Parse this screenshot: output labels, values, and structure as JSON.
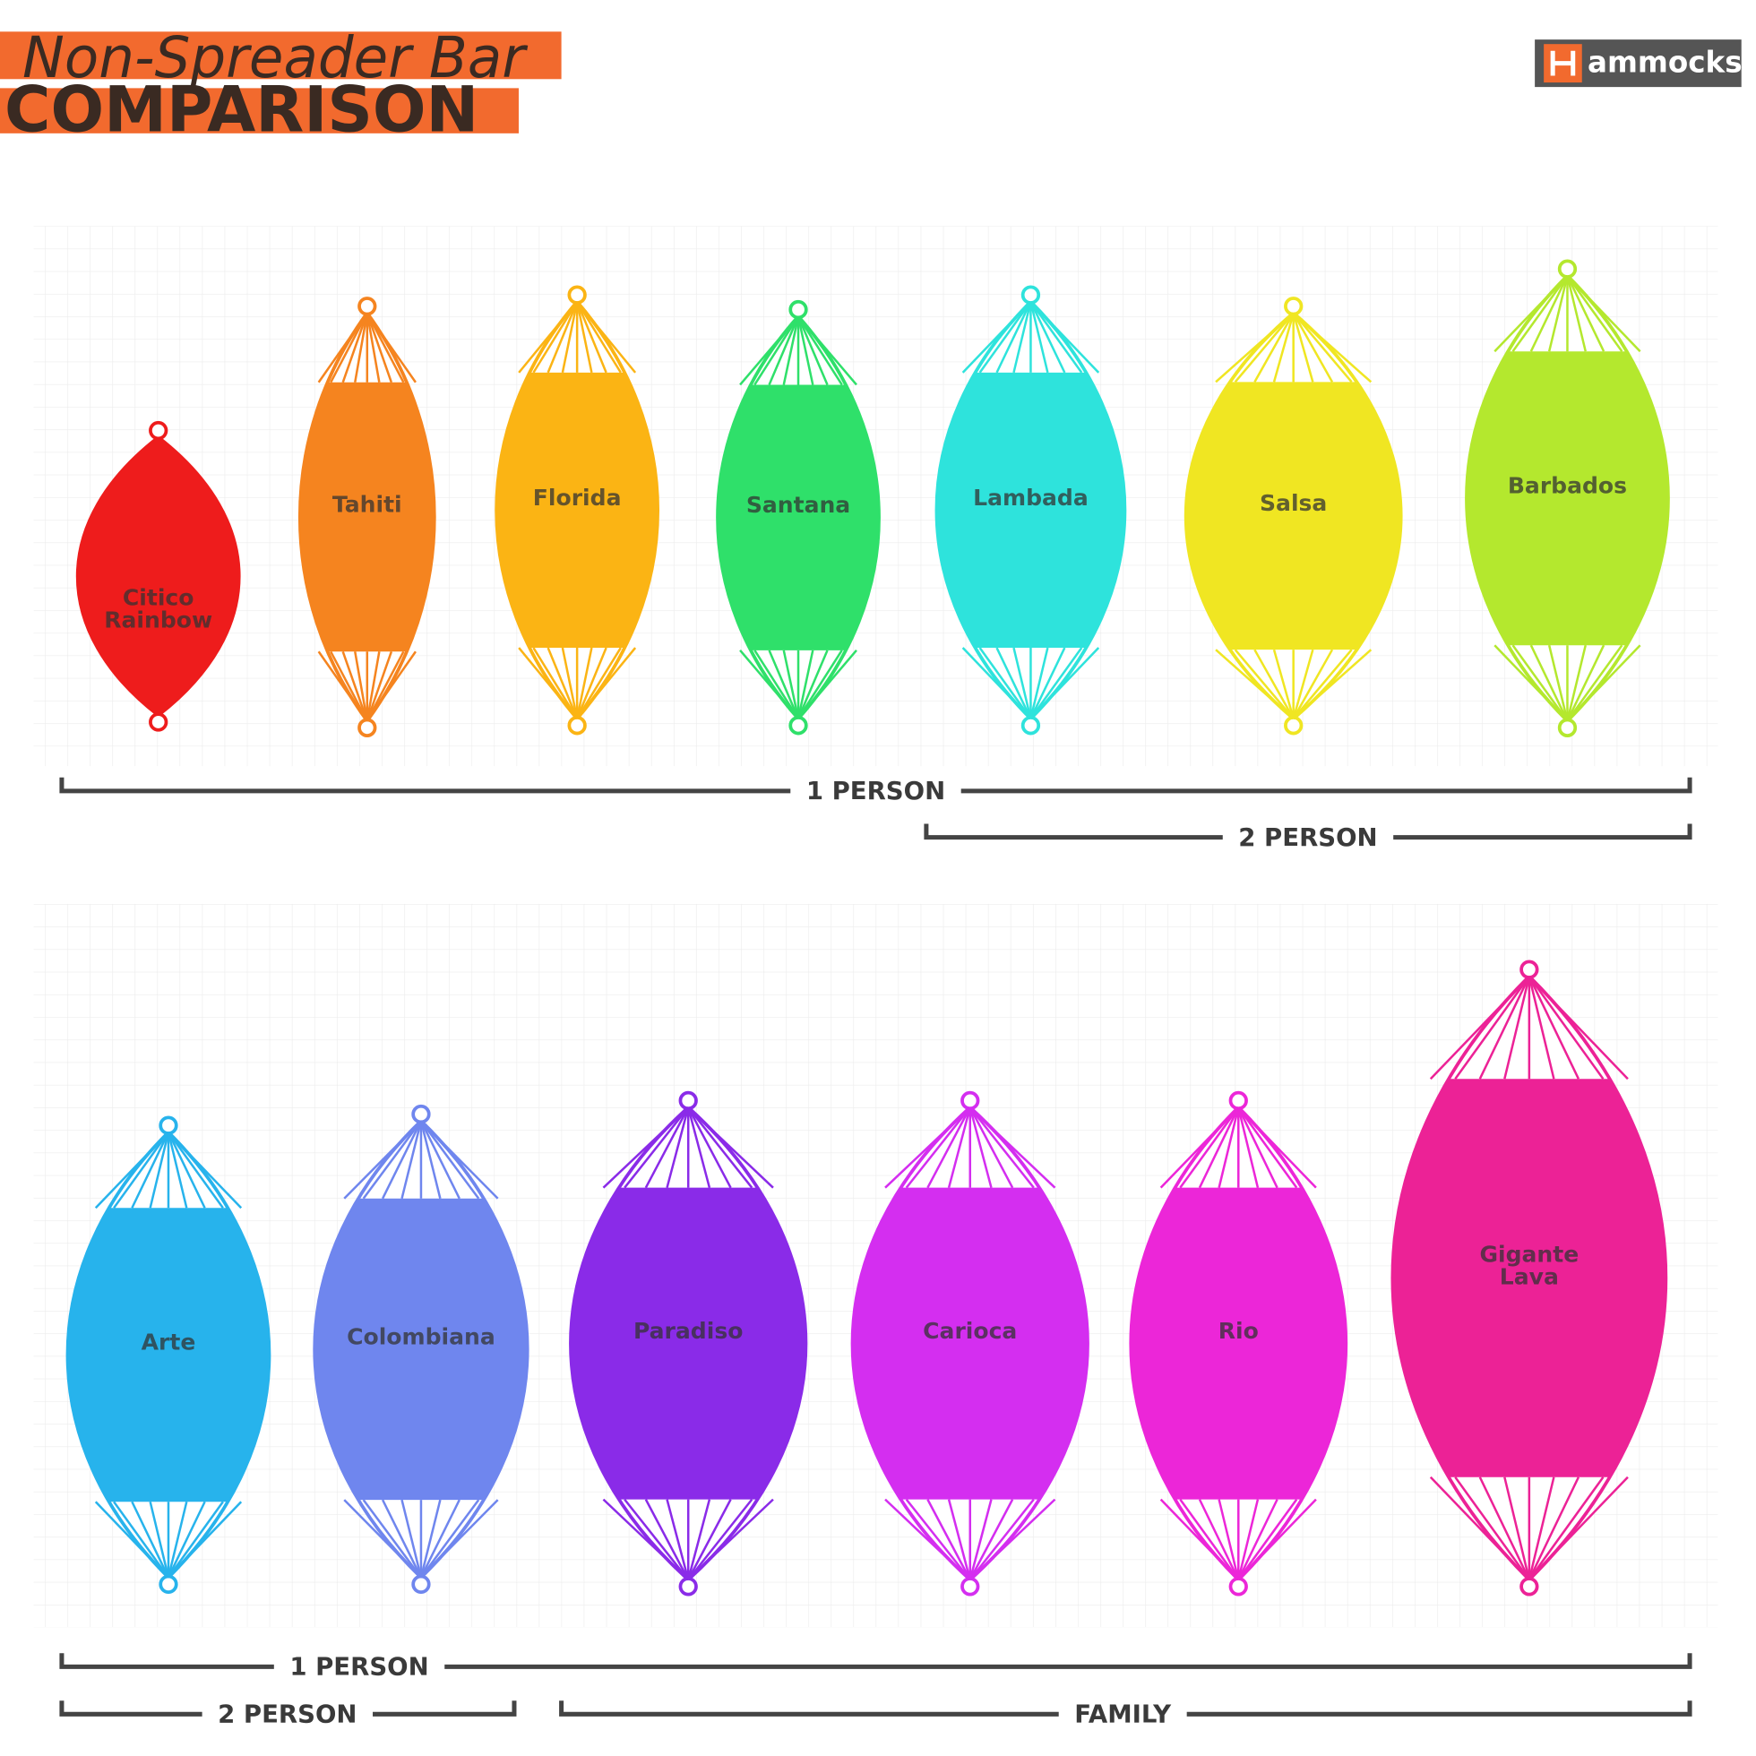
{
  "title": {
    "script": "Non-Spreader Bar",
    "main": "COMPARISON"
  },
  "logo": "ammocks",
  "rows": [
    {
      "hammocks": [
        {
          "name": [
            "Citico",
            "Rainbow"
          ],
          "color": "#ee1c1c"
        },
        {
          "name": [
            "Tahiti"
          ],
          "color": "#f5841f"
        },
        {
          "name": [
            "Florida"
          ],
          "color": "#fbb414"
        },
        {
          "name": [
            "Santana"
          ],
          "color": "#2fe06a"
        },
        {
          "name": [
            "Lambada"
          ],
          "color": "#2ee3dc"
        },
        {
          "name": [
            "Salsa"
          ],
          "color": "#f0e622"
        },
        {
          "name": [
            "Barbados"
          ],
          "color": "#b4e82e"
        }
      ],
      "brackets": [
        {
          "label": "1 PERSON"
        },
        {
          "label": "2 PERSON"
        }
      ]
    },
    {
      "hammocks": [
        {
          "name": [
            "Arte"
          ],
          "color": "#27b3ec"
        },
        {
          "name": [
            "Colombiana"
          ],
          "color": "#6f86ee"
        },
        {
          "name": [
            "Paradiso"
          ],
          "color": "#8a2be8"
        },
        {
          "name": [
            "Carioca"
          ],
          "color": "#d42ef0"
        },
        {
          "name": [
            "Rio"
          ],
          "color": "#ec26d8"
        },
        {
          "name": [
            "Gigante",
            "Lava"
          ],
          "color": "#ec2296"
        }
      ],
      "brackets": [
        {
          "label": "1 PERSON"
        },
        {
          "label": "2 PERSON"
        },
        {
          "label": "FAMILY"
        }
      ]
    }
  ]
}
